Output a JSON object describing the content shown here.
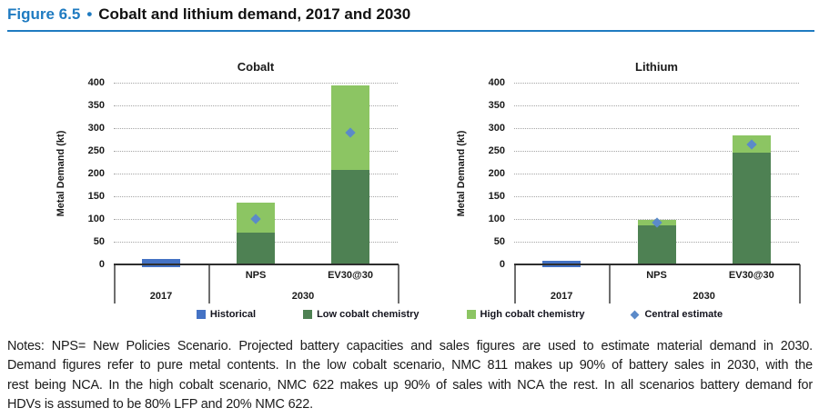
{
  "header": {
    "figure_label": "Figure 6.5",
    "separator": "•",
    "title": "Cobalt and lithium demand, 2017 and 2030",
    "accent_color": "#1f7bc1"
  },
  "chart_data": [
    {
      "type": "bar",
      "title": "Cobalt",
      "ylabel": "Metal Demand (kt)",
      "ylim": [
        0,
        400
      ],
      "ytick_step": 50,
      "grid": "horizontal-dotted",
      "legend_position": "bottom-center",
      "group_labels": [
        "2017",
        "2030"
      ],
      "categories": [
        "",
        "NPS",
        "EV30@30"
      ],
      "series": [
        {
          "name": "Historical",
          "type": "bar",
          "color": "#4472c4",
          "values": [
            12,
            0,
            0
          ]
        },
        {
          "name": "Low cobalt chemistry",
          "type": "bar",
          "color": "#4e8153",
          "values": [
            0,
            70,
            208
          ]
        },
        {
          "name": "High cobalt chemistry",
          "type": "bar",
          "color": "#8cc563",
          "values": [
            0,
            66,
            187
          ]
        },
        {
          "name": "Central estimate",
          "type": "point",
          "color": "#5b8ac9",
          "values": [
            null,
            100,
            290
          ]
        }
      ]
    },
    {
      "type": "bar",
      "title": "Lithium",
      "ylabel": "Metal Demand (kt)",
      "ylim": [
        0,
        400
      ],
      "ytick_step": 50,
      "grid": "horizontal-dotted",
      "legend_position": "bottom-center",
      "group_labels": [
        "2017",
        "2030"
      ],
      "categories": [
        "",
        "NPS",
        "EV30@30"
      ],
      "series": [
        {
          "name": "Historical",
          "type": "bar",
          "color": "#4472c4",
          "values": [
            8,
            0,
            0
          ]
        },
        {
          "name": "Low cobalt chemistry",
          "type": "bar",
          "color": "#4e8153",
          "values": [
            0,
            86,
            246
          ]
        },
        {
          "name": "High cobalt chemistry",
          "type": "bar",
          "color": "#8cc563",
          "values": [
            0,
            12,
            38
          ]
        },
        {
          "name": "Central estimate",
          "type": "point",
          "color": "#5b8ac9",
          "values": [
            null,
            92,
            265
          ]
        }
      ]
    }
  ],
  "legend": {
    "items": [
      {
        "label": "Historical",
        "marker": "square",
        "color": "#4472c4"
      },
      {
        "label": "Low cobalt chemistry",
        "marker": "square",
        "color": "#4e8153"
      },
      {
        "label": "High cobalt chemistry",
        "marker": "square",
        "color": "#8cc563"
      },
      {
        "label": "Central estimate",
        "marker": "diamond",
        "color": "#5b8ac9"
      }
    ]
  },
  "notes": {
    "lines": [
      "Notes: NPS= New Policies Scenario. Projected battery capacities and sales figures are used to estimate material demand in 2030.",
      "Demand figures refer to pure metal contents. In the low cobalt scenario, NMC 811 makes up 90% of battery sales in 2030, with the",
      "rest being NCA. In the high cobalt scenario, NMC 622 makes up 90% of sales with NCA the rest. In all scenarios battery demand for",
      "HDVs is assumed to be 80% LFP and 20% NMC 622."
    ]
  }
}
